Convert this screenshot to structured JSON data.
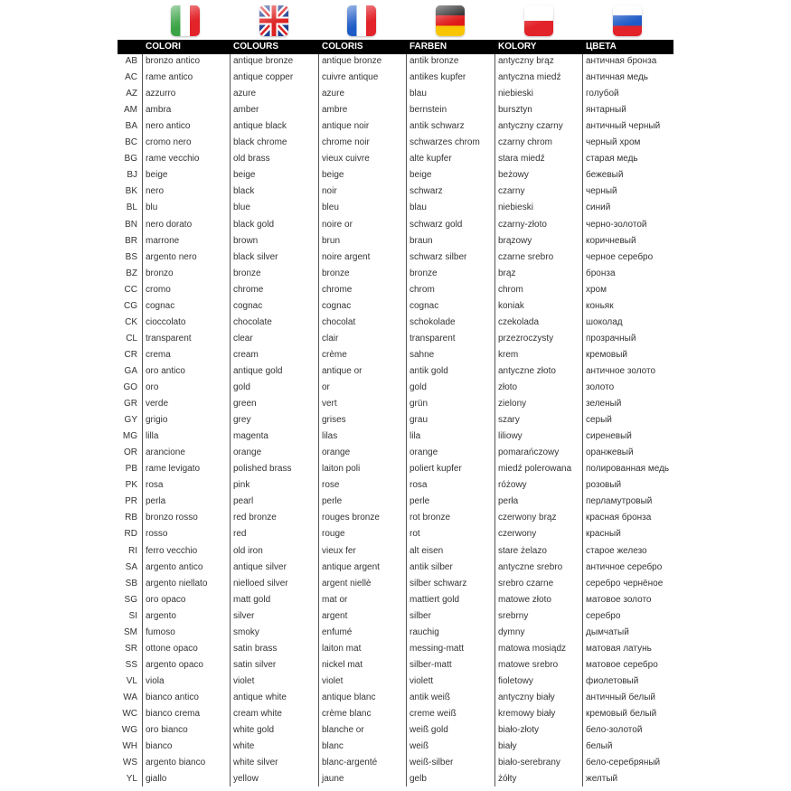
{
  "flags": [
    {
      "name": "italy-flag-icon"
    },
    {
      "name": "uk-flag-icon"
    },
    {
      "name": "france-flag-icon"
    },
    {
      "name": "germany-flag-icon"
    },
    {
      "name": "poland-flag-icon"
    },
    {
      "name": "russia-flag-icon"
    }
  ],
  "headers": [
    "COLORI",
    "COLOURS",
    "COLORIS",
    "FARBEN",
    "KOLORY",
    "ЦВЕТА"
  ],
  "rows": [
    [
      "AB",
      "bronzo antico",
      "antique bronze",
      "antique bronze",
      "antik bronze",
      "antyczny brąz",
      "античная бронза"
    ],
    [
      "AC",
      "rame antico",
      "antique copper",
      "cuivre antique",
      "antikes kupfer",
      "antyczna miedź",
      "античная медь"
    ],
    [
      "AZ",
      "azzurro",
      "azure",
      "azure",
      "blau",
      "niebieski",
      "голубой"
    ],
    [
      "AM",
      "ambra",
      "amber",
      "ambre",
      "bernstein",
      "bursztyn",
      "янтарный"
    ],
    [
      "BA",
      "nero antico",
      "antique black",
      "antique noir",
      "antik schwarz",
      "antyczny czarny",
      "античный черный"
    ],
    [
      "BC",
      "cromo nero",
      "black chrome",
      "chrome noir",
      "schwarzes chrom",
      "czarny chrom",
      "черный хром"
    ],
    [
      "BG",
      "rame vecchio",
      "old brass",
      "vieux cuivre",
      "alte kupfer",
      "stara miedź",
      "старая медь"
    ],
    [
      "BJ",
      "beige",
      "beige",
      "beige",
      "beige",
      "beżowy",
      "бежевый"
    ],
    [
      "BK",
      "nero",
      "black",
      "noir",
      "schwarz",
      "czarny",
      "черный"
    ],
    [
      "BL",
      "blu",
      "blue",
      "bleu",
      "blau",
      "niebieski",
      "синий"
    ],
    [
      "BN",
      "nero dorato",
      "black gold",
      "noire or",
      "schwarz gold",
      "czarny-złoto",
      "черно-золотой"
    ],
    [
      "BR",
      "marrone",
      "brown",
      "brun",
      "braun",
      "brązowy",
      "коричневый"
    ],
    [
      "BS",
      "argento nero",
      "black silver",
      "noire argent",
      "schwarz silber",
      "czarne srebro",
      "черное серебро"
    ],
    [
      "BZ",
      "bronzo",
      "bronze",
      "bronze",
      "bronze",
      "brąz",
      "бронза"
    ],
    [
      "CC",
      "cromo",
      "chrome",
      "chrome",
      "chrom",
      "chrom",
      "хром"
    ],
    [
      "CG",
      "cognac",
      "cognac",
      "cognac",
      "cognac",
      "koniak",
      "коньяк"
    ],
    [
      "CK",
      "cioccolato",
      "chocolate",
      "chocolat",
      "schokolade",
      "czekolada",
      "шоколад"
    ],
    [
      "CL",
      "transparent",
      "clear",
      "clair",
      "transparent",
      "przezroczysty",
      "прозрачный"
    ],
    [
      "CR",
      "crema",
      "cream",
      "crème",
      "sahne",
      "krem",
      "кремовый"
    ],
    [
      "GA",
      "oro antico",
      "antique gold",
      "antique or",
      "antik gold",
      "antyczne złoto",
      "античное золото"
    ],
    [
      "GO",
      "oro",
      "gold",
      "or",
      "gold",
      "złoto",
      "золото"
    ],
    [
      "GR",
      "verde",
      "green",
      "vert",
      "grün",
      "zielony",
      "зеленый"
    ],
    [
      "GY",
      "grigio",
      "grey",
      "grises",
      "grau",
      "szary",
      "серый"
    ],
    [
      "MG",
      "lilla",
      "magenta",
      "lilas",
      "lila",
      "liliowy",
      "сиреневый"
    ],
    [
      "OR",
      "arancione",
      "orange",
      "orange",
      "orange",
      "pomarańczowy",
      "оранжевый"
    ],
    [
      "PB",
      "rame levigato",
      "polished brass",
      "laiton poli",
      "poliert kupfer",
      "miedź polerowana",
      "полированная медь"
    ],
    [
      "PK",
      "rosa",
      "pink",
      "rose",
      "rosa",
      "różowy",
      "розовый"
    ],
    [
      "PR",
      "perla",
      "pearl",
      "perle",
      "perle",
      "perła",
      "перламутровый"
    ],
    [
      "RB",
      "bronzo rosso",
      "red bronze",
      "rouges bronze",
      "rot bronze",
      "czerwony brąz",
      "красная бронза"
    ],
    [
      "RD",
      "rosso",
      "red",
      "rouge",
      "rot",
      "czerwony",
      "красный"
    ],
    [
      "RI",
      "ferro vecchio",
      "old iron",
      "vieux fer",
      "alt eisen",
      "stare żelazo",
      "старое железо"
    ],
    [
      "SA",
      "argento antico",
      "antique silver",
      "antique argent",
      "antik silber",
      "antyczne srebro",
      "античное серебро"
    ],
    [
      "SB",
      "argento niellato",
      "nielloed silver",
      "argent niellè",
      "silber schwarz",
      "srebro czarne",
      "серебро чернёное"
    ],
    [
      "SG",
      "oro opaco",
      "matt gold",
      "mat or",
      "mattiert gold",
      "matowe złoto",
      "матовое золото"
    ],
    [
      "SI",
      "argento",
      "silver",
      "argent",
      "silber",
      "srebrny",
      "серебро"
    ],
    [
      "SM",
      "fumoso",
      "smoky",
      "enfumé",
      "rauchig",
      "dymny",
      "дымчатый"
    ],
    [
      "SR",
      "ottone opaco",
      "satin brass",
      "laiton mat",
      "messing-matt",
      "matowa mosiądz",
      "матовая латунь"
    ],
    [
      "SS",
      "argento opaco",
      "satin silver",
      "nickel mat",
      "silber-matt",
      "matowe srebro",
      "матовое серебро"
    ],
    [
      "VL",
      "viola",
      "violet",
      "violet",
      "violett",
      "fioletowy",
      "фиолетовый"
    ],
    [
      "WA",
      "bianco antico",
      "antique white",
      "antique blanc",
      "antik weiß",
      "antyczny biały",
      "античный белый"
    ],
    [
      "WC",
      "bianco crema",
      "cream white",
      "crème blanc",
      "creme weiß",
      "kremowy biały",
      "кремовый белый"
    ],
    [
      "WG",
      "oro bianco",
      "white gold",
      "blanche or",
      "weiß gold",
      "biało-złoty",
      "бело-золотой"
    ],
    [
      "WH",
      "bianco",
      "white",
      "blanc",
      "weiß",
      "biały",
      "белый"
    ],
    [
      "WS",
      "argento bianco",
      "white silver",
      "blanc-argenté",
      "weiß-silber",
      "biało-serebrany",
      "бело-серебряный"
    ],
    [
      "YL",
      "giallo",
      "yellow",
      "jaune",
      "gelb",
      "żółty",
      "желтый"
    ]
  ]
}
